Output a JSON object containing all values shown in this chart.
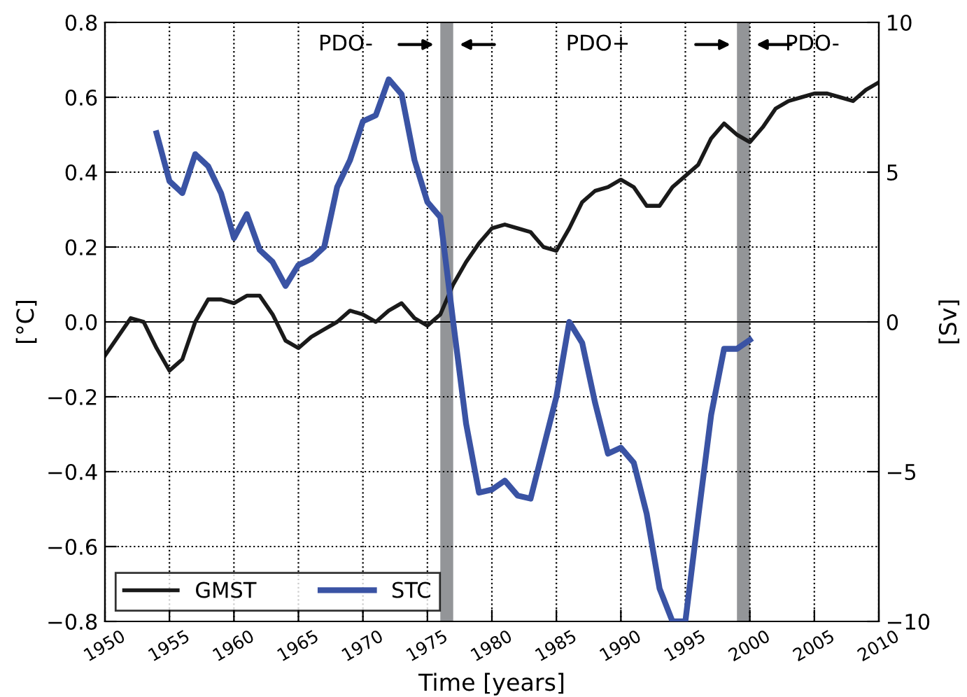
{
  "chart_data": {
    "type": "line",
    "xlabel": "Time [years]",
    "ylabel": "[°C]",
    "y2label": "[Sv]",
    "x": [
      1950,
      1951,
      1952,
      1953,
      1954,
      1955,
      1956,
      1957,
      1958,
      1959,
      1960,
      1961,
      1962,
      1963,
      1964,
      1965,
      1966,
      1967,
      1968,
      1969,
      1970,
      1971,
      1972,
      1973,
      1974,
      1975,
      1976,
      1977,
      1978,
      1979,
      1980,
      1981,
      1982,
      1983,
      1984,
      1985,
      1986,
      1987,
      1988,
      1989,
      1990,
      1991,
      1992,
      1993,
      1994,
      1995,
      1996,
      1997,
      1998,
      1999,
      2000,
      2001,
      2002,
      2003,
      2004,
      2005,
      2006,
      2007,
      2008,
      2009,
      2010
    ],
    "series": [
      {
        "name": "GMST",
        "color": "#1a1a1a",
        "values": [
          -0.09,
          -0.04,
          0.01,
          0.0,
          -0.07,
          -0.13,
          -0.1,
          0.0,
          0.06,
          0.06,
          0.05,
          0.07,
          0.07,
          0.02,
          -0.05,
          -0.07,
          -0.04,
          -0.02,
          0.0,
          0.03,
          0.02,
          0.0,
          0.03,
          0.05,
          0.01,
          -0.01,
          0.02,
          0.1,
          0.16,
          0.21,
          0.25,
          0.26,
          0.25,
          0.24,
          0.2,
          0.19,
          0.25,
          0.32,
          0.35,
          0.36,
          0.38,
          0.36,
          0.31,
          0.31,
          0.36,
          0.39,
          0.42,
          0.49,
          0.53,
          0.5,
          0.48,
          0.52,
          0.57,
          0.59,
          0.6,
          0.61,
          0.61,
          0.6,
          0.59,
          0.62,
          0.64
        ]
      },
      {
        "name": "STC",
        "color": "#3a53a4",
        "axis": "y2",
        "values": [
          null,
          null,
          null,
          null,
          6.3,
          4.7,
          4.3,
          5.6,
          5.2,
          4.3,
          2.8,
          3.6,
          2.4,
          2.0,
          1.2,
          1.9,
          2.1,
          2.5,
          4.5,
          5.4,
          6.7,
          6.9,
          8.1,
          7.6,
          5.4,
          4.0,
          3.5,
          0.0,
          -3.4,
          -5.7,
          -5.6,
          -5.3,
          -5.8,
          -5.9,
          -4.2,
          -2.5,
          0.0,
          -0.7,
          -2.7,
          -4.4,
          -4.2,
          -4.7,
          -6.4,
          -8.9,
          -10.0,
          -10.0,
          -6.5,
          -3.1,
          -0.9,
          -0.9,
          -0.6,
          null,
          null,
          null,
          null,
          null,
          null,
          null,
          null,
          null,
          null
        ]
      }
    ],
    "xlim": [
      1950,
      2010
    ],
    "xticks": [
      1950,
      1955,
      1960,
      1965,
      1970,
      1975,
      1980,
      1985,
      1990,
      1995,
      2000,
      2005,
      2010
    ],
    "ylim": [
      -0.8,
      0.8
    ],
    "yticks": [
      {
        "value": -0.8,
        "label": "−0.8"
      },
      {
        "value": -0.6,
        "label": "−0.6"
      },
      {
        "value": -0.4,
        "label": "−0.4"
      },
      {
        "value": -0.2,
        "label": "−0.2"
      },
      {
        "value": 0,
        "label": "0.0"
      },
      {
        "value": 0.2,
        "label": "0.2"
      },
      {
        "value": 0.4,
        "label": "0.4"
      },
      {
        "value": 0.6,
        "label": "0.6"
      },
      {
        "value": 0.8,
        "label": "0.8"
      }
    ],
    "y2lim": [
      -10,
      10
    ],
    "y2ticks": [
      -10,
      -5,
      0,
      5,
      10
    ],
    "ref_lines": [
      {
        "axis": "y",
        "value": 0,
        "color": "#000000"
      }
    ],
    "bands": [
      {
        "axis": "x",
        "from": 1976,
        "to": 1977,
        "color": "#939598"
      },
      {
        "axis": "x",
        "from": 1999,
        "to": 2000,
        "color": "#939598"
      }
    ],
    "annotations": [
      "PDO-",
      "PDO+",
      "PDO-"
    ],
    "grid": true,
    "legend": "bottom left",
    "line_style": "solid",
    "marker": "none"
  }
}
